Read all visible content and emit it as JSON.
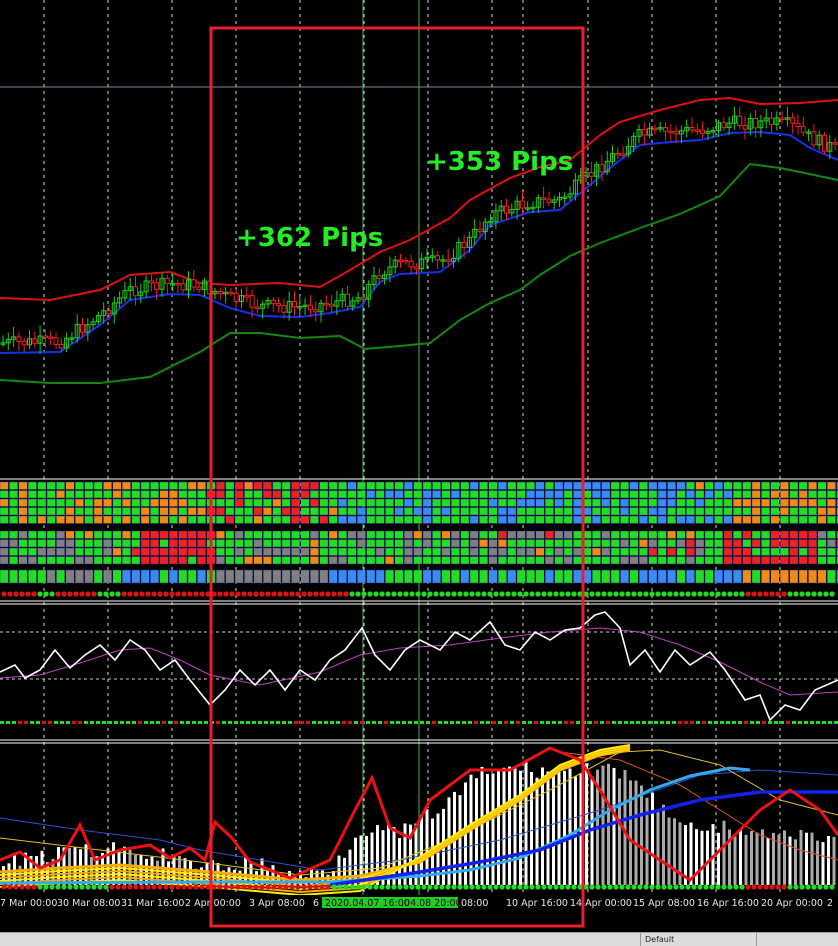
{
  "annotations": [
    {
      "text": "+362 Pips"
    },
    {
      "text": "+353 Pips"
    }
  ],
  "time_axis": {
    "labels": [
      "7 Mar 00:00",
      "30 Mar 08:00",
      "31 Mar 16:00",
      "2 Apr 00:00",
      "3 Apr 08:00",
      "6",
      "2020.04.07 16:00",
      ".04.08 20:00",
      "08:00",
      "10 Apr 16:00",
      "14 Apr 00:00",
      "15 Apr 08:00",
      "16 Apr 16:00",
      "20 Apr 00:00",
      "2"
    ]
  },
  "colors": {
    "background": "#000000",
    "candle_up": "#22cc22",
    "candle_down": "#ee2222",
    "band_upper": "#dd1111",
    "band_middle": "#1133ee",
    "band_lower": "#118811",
    "highlight_box": "#e8202a",
    "annotation": "#22ee22",
    "signal_green": "#22dd22",
    "signal_red": "#dd1111",
    "heat_blue": "#3a8cf0",
    "heat_orange": "#f08c14",
    "heat_gray": "#808080"
  },
  "statusbar": {
    "text": "Default"
  }
}
